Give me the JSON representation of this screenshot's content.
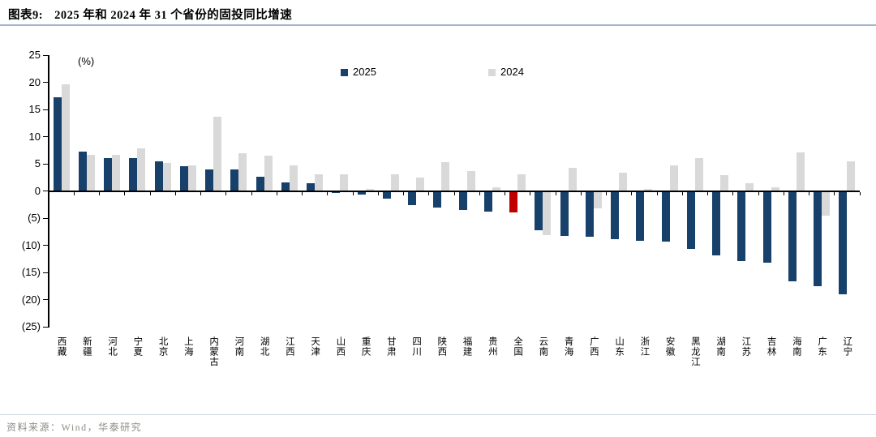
{
  "header": {
    "figure_label": "图表9:",
    "title": "2025 年和 2024 年 31 个省份的固投同比增速"
  },
  "chart_data": {
    "type": "bar",
    "title": "2025 年和 2024 年 31 个省份的固投同比增速",
    "unit_label": "(%)",
    "xlabel": "",
    "ylabel": "(%)",
    "ylim": [
      -25,
      25
    ],
    "ytick_step": 5,
    "ytick_labels": [
      "25",
      "20",
      "15",
      "10",
      "5",
      "0",
      "(5)",
      "(10)",
      "(15)",
      "(20)",
      "(25)"
    ],
    "grid": false,
    "legend_position": "top-center",
    "categories": [
      "西藏",
      "新疆",
      "河北",
      "宁夏",
      "北京",
      "上海",
      "内蒙古",
      "河南",
      "湖北",
      "江西",
      "天津",
      "山西",
      "重庆",
      "甘肃",
      "四川",
      "陕西",
      "福建",
      "贵州",
      "全国",
      "云南",
      "青海",
      "广西",
      "山东",
      "浙江",
      "安徽",
      "黑龙江",
      "湖南",
      "江苏",
      "吉林",
      "海南",
      "广东",
      "辽宁"
    ],
    "series": [
      {
        "name": "2025",
        "color": "#17406A",
        "values": [
          17.2,
          7.2,
          6.0,
          6.1,
          5.5,
          4.5,
          4.0,
          4.0,
          2.6,
          1.5,
          1.4,
          -0.3,
          -0.6,
          -1.4,
          -2.6,
          -3.1,
          -3.5,
          -3.8,
          -4.0,
          -7.2,
          -8.3,
          -8.5,
          -8.9,
          -9.2,
          -9.4,
          -10.6,
          -11.9,
          -12.9,
          -13.2,
          -16.7,
          -17.5,
          -19.1
        ]
      },
      {
        "name": "2024",
        "color": "#D9D9D9",
        "values": [
          19.6,
          6.7,
          6.7,
          7.9,
          5.2,
          4.7,
          13.6,
          7.0,
          6.5,
          4.7,
          3.0,
          3.1,
          0.4,
          3.1,
          2.4,
          5.3,
          3.7,
          0.6,
          3.0,
          -8.1,
          4.2,
          -3.2,
          3.4,
          0.3,
          4.7,
          6.1,
          2.9,
          1.4,
          0.7,
          7.1,
          -4.5,
          5.5
        ]
      }
    ],
    "highlight": {
      "category": "全国",
      "series": "2025",
      "color": "#C00000"
    }
  },
  "footer": {
    "source": "资料来源：Wind，华泰研究"
  }
}
